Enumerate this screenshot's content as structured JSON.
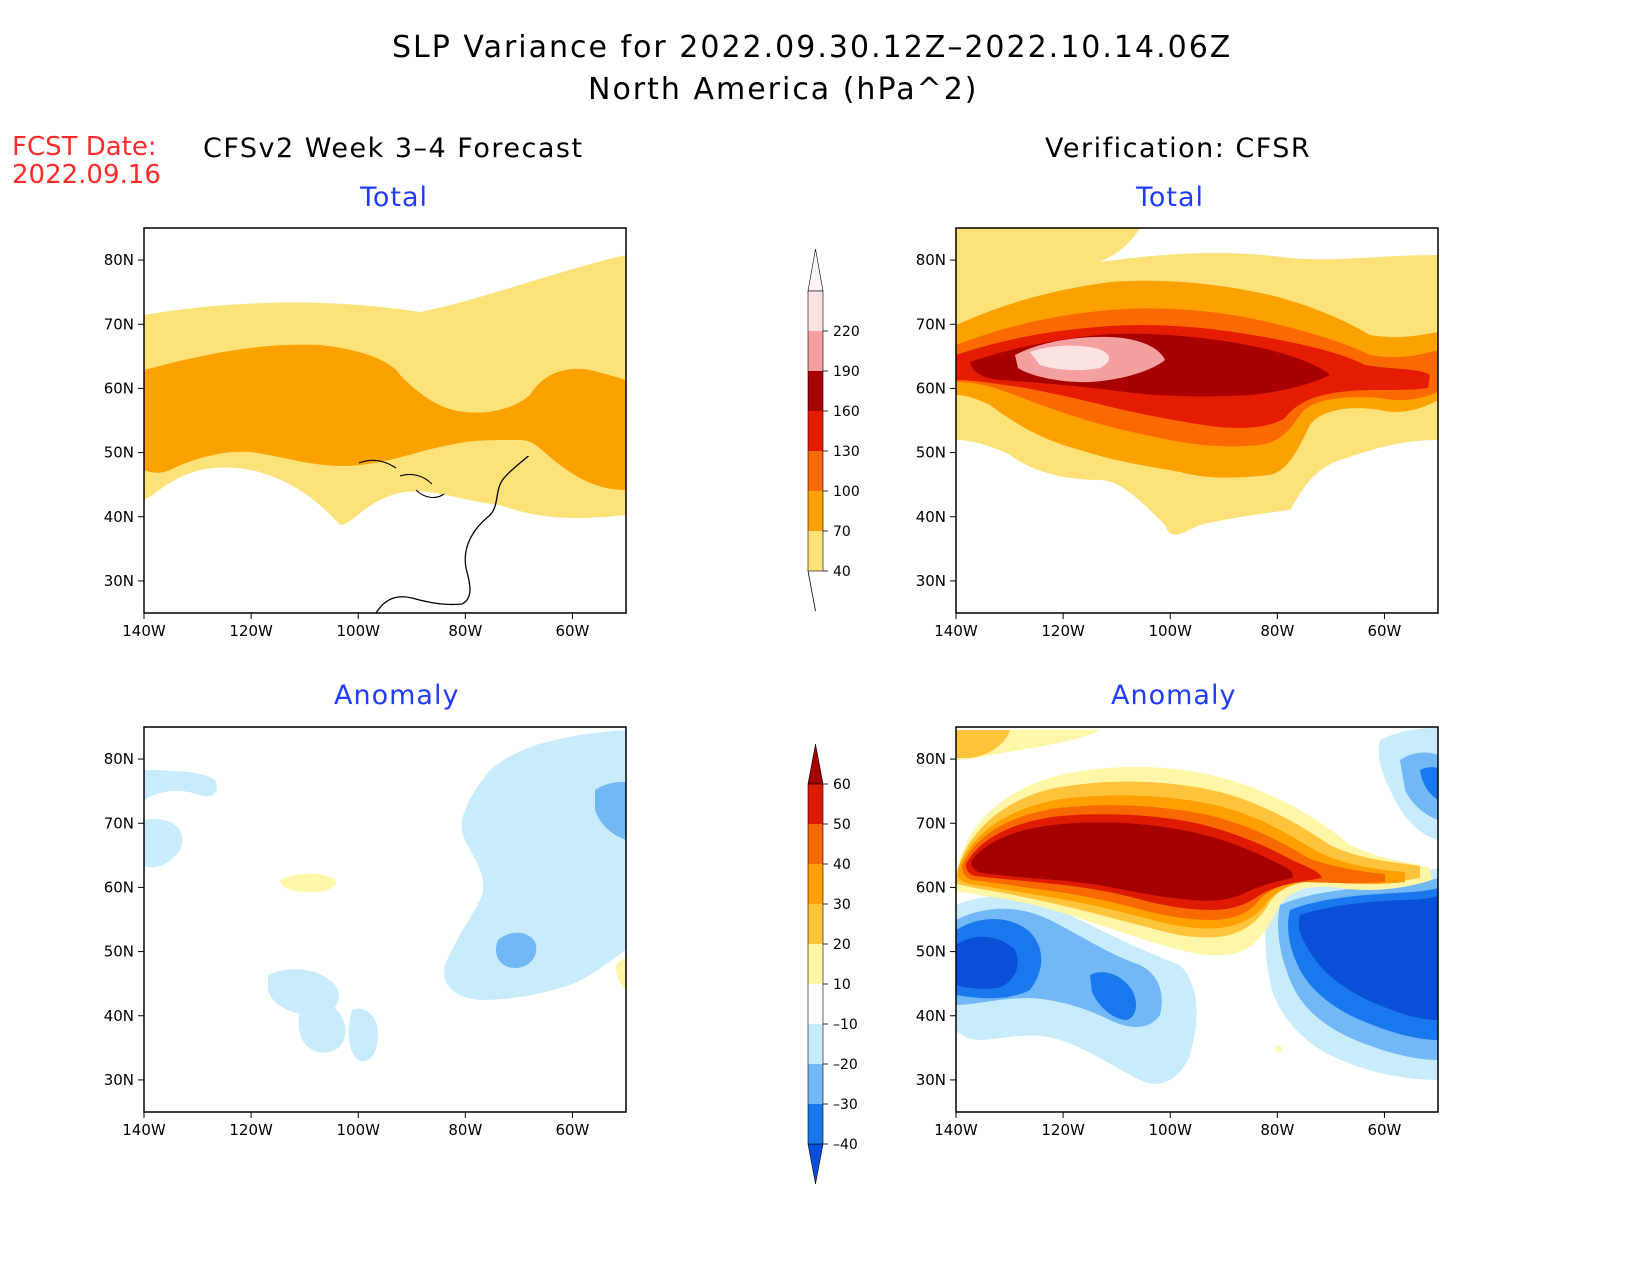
{
  "title": {
    "line1": "SLP Variance for 2022.09.30.12Z–2022.10.14.06Z",
    "line2": "North America (hPa^2)"
  },
  "fcst_date": {
    "label": "FCST Date:",
    "value": "2022.09.16"
  },
  "columns": {
    "left": "CFSv2 Week 3–4 Forecast",
    "right": "Verification: CFSR"
  },
  "panels": {
    "top_left": "Total",
    "top_right": "Total",
    "bottom_left": "Anomaly",
    "bottom_right": "Anomaly"
  },
  "map_axes": {
    "lat_labels": [
      "80N",
      "70N",
      "60N",
      "50N",
      "40N",
      "30N"
    ],
    "lat_values": [
      80,
      70,
      60,
      50,
      40,
      30
    ],
    "lon_labels": [
      "140W",
      "120W",
      "100W",
      "80W",
      "60W"
    ],
    "lon_values": [
      -140,
      -120,
      -100,
      -80,
      -60
    ],
    "lon_range": [
      -140,
      -50
    ],
    "lat_range": [
      25,
      85
    ]
  },
  "colorbars": {
    "total": {
      "labels": [
        "40",
        "70",
        "100",
        "130",
        "160",
        "190",
        "220"
      ],
      "colors": [
        "#fde27a",
        "#fba200",
        "#fb6a00",
        "#e51c00",
        "#a80000",
        "#f5a0a0",
        "#fde2e2"
      ]
    },
    "anomaly": {
      "labels": [
        "–40",
        "–30",
        "–20",
        "–10",
        "10",
        "20",
        "30",
        "40",
        "50",
        "60"
      ],
      "colors": [
        "#0a4fd8",
        "#1a78ee",
        "#72b8f6",
        "#c9ecfd",
        "#ffffff",
        "#fff6a8",
        "#ffc43c",
        "#ffa000",
        "#f86a00",
        "#de1a00",
        "#a50000"
      ]
    }
  }
}
